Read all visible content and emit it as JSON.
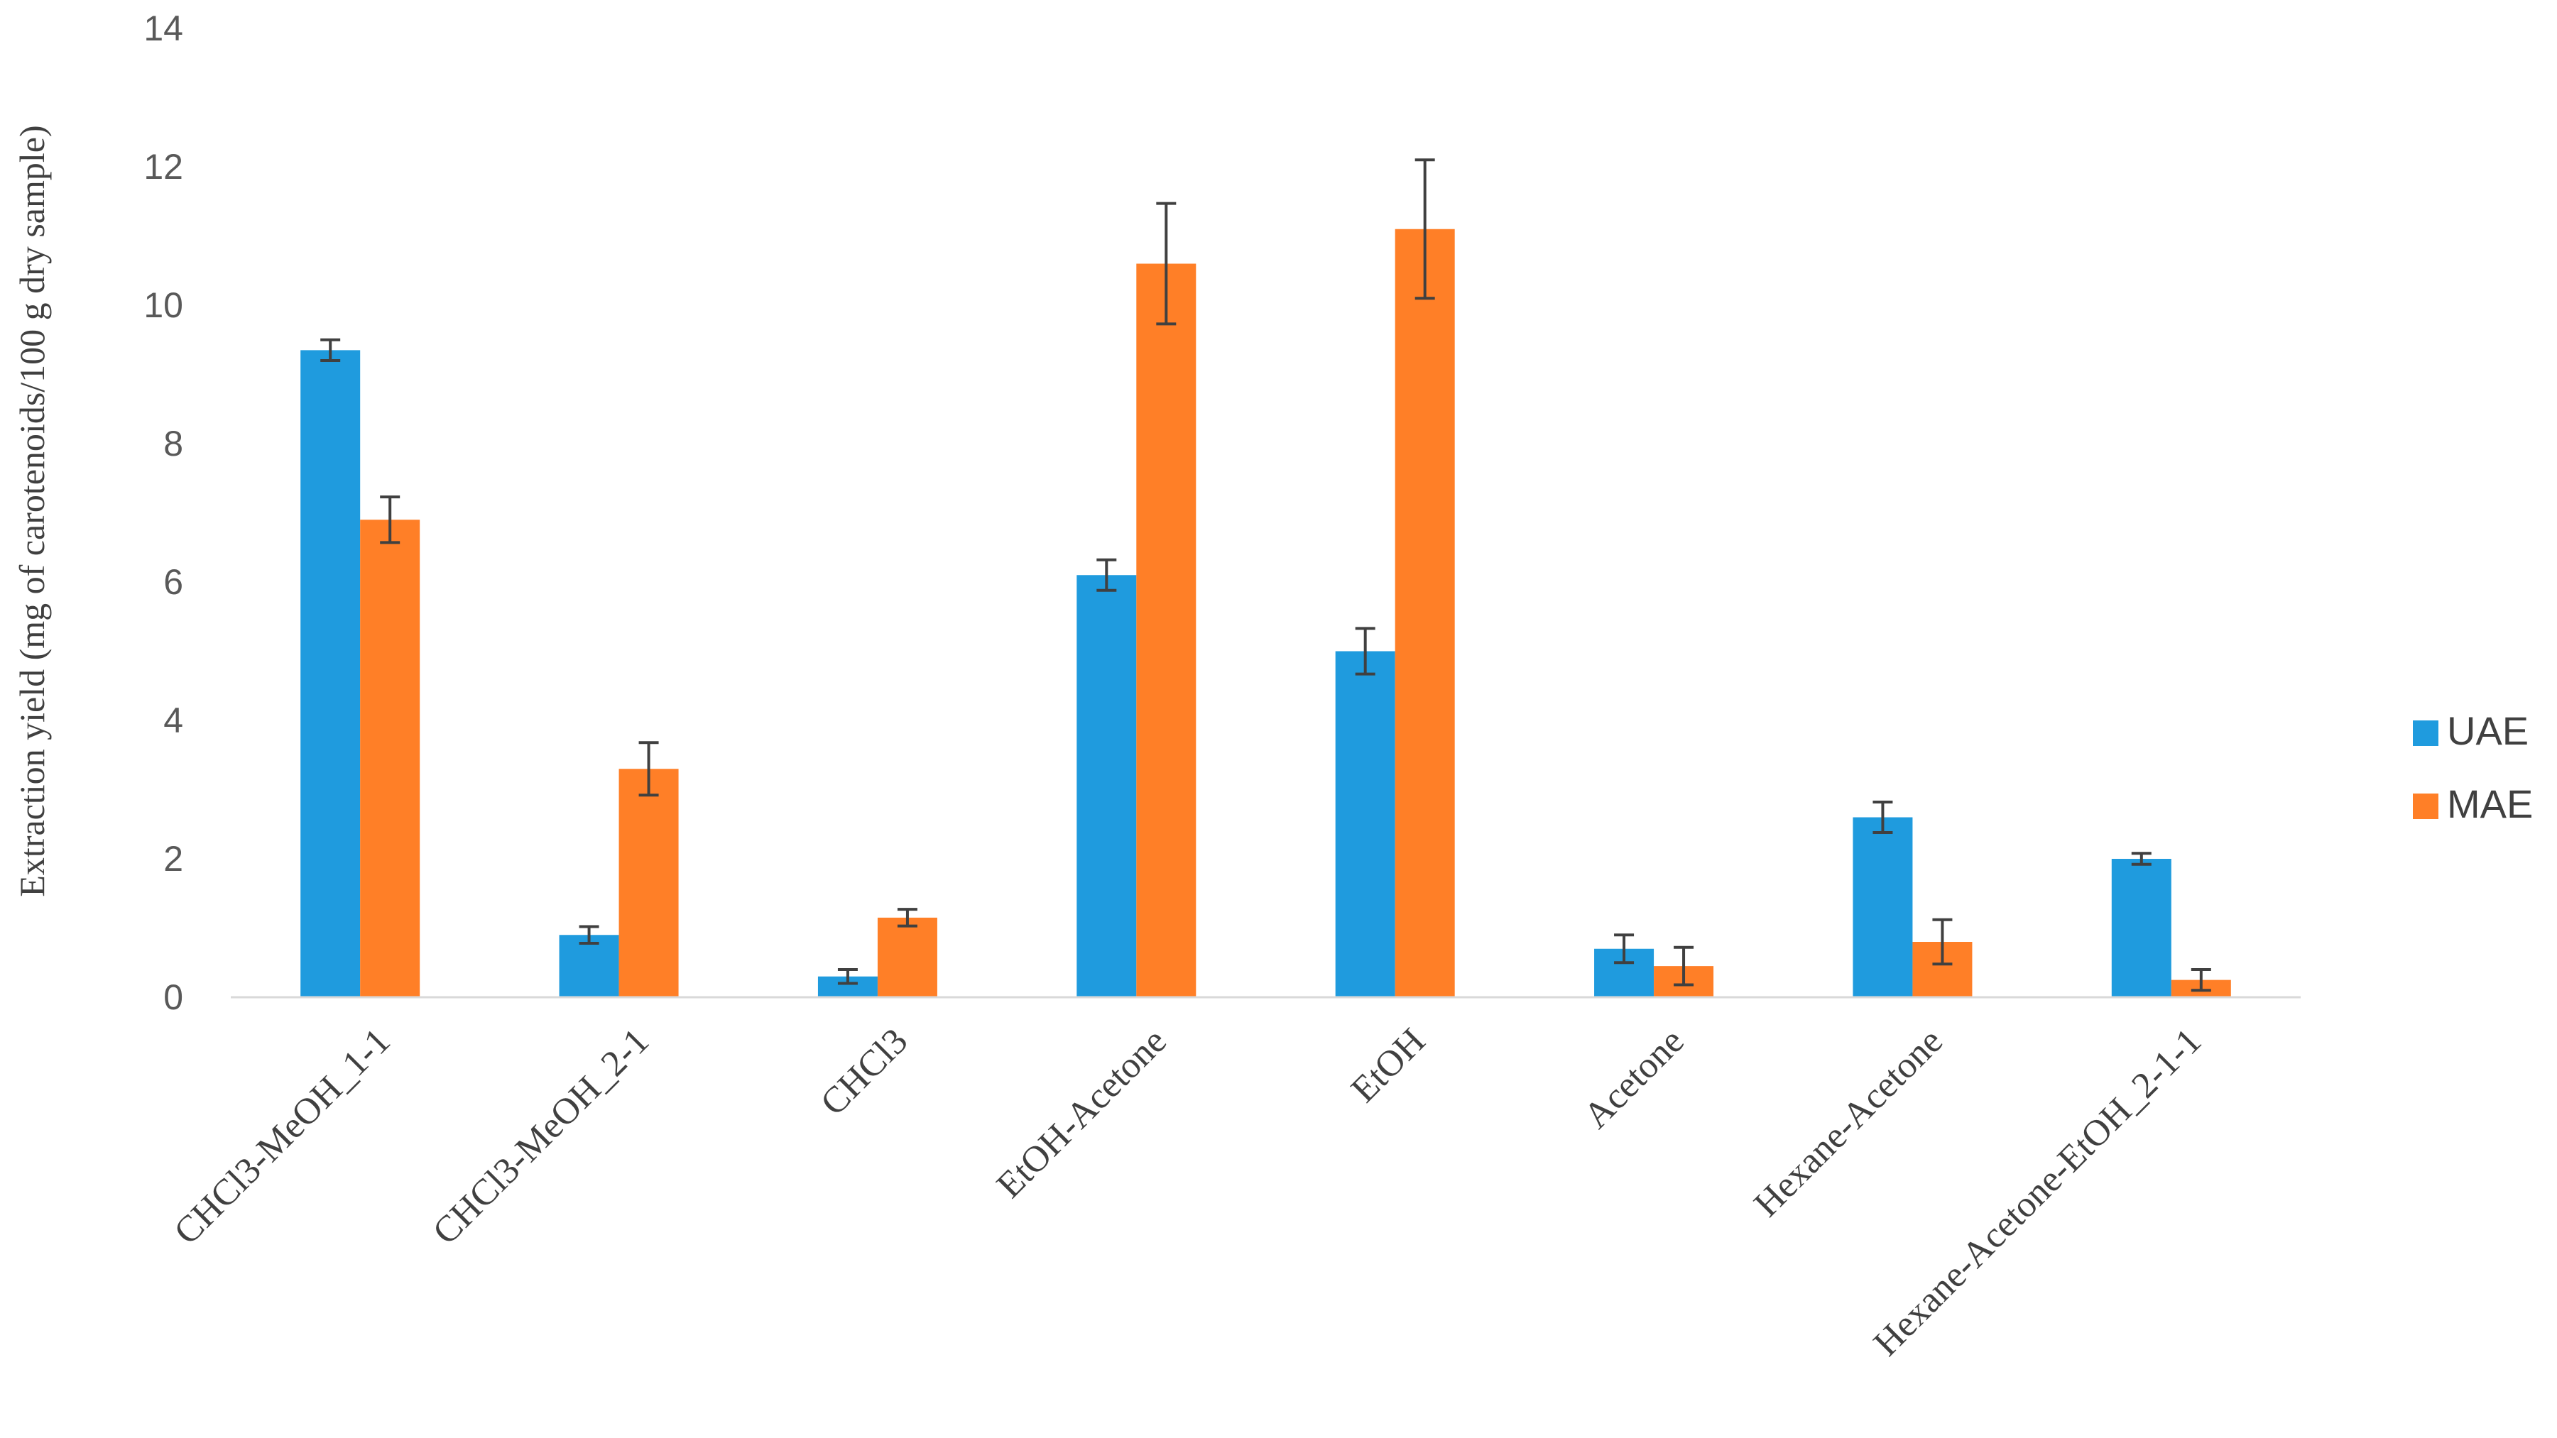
{
  "chart_data": {
    "type": "bar",
    "title": "",
    "xlabel": "",
    "ylabel": "Extraction yield (mg of carotenoids/100 g dry sample)",
    "ylim": [
      0,
      14
    ],
    "yticks": [
      0,
      2,
      4,
      6,
      8,
      10,
      12,
      14
    ],
    "grid": false,
    "legend_position": "right",
    "categories": [
      "CHCl3-MeOH_1-1",
      "CHCl3-MeOH_2-1",
      "CHCl3",
      "EtOH-Acetone",
      "EtOH",
      "Acetone",
      "Hexane-Acetone",
      "Hexane-Acetone-EtOH_2-1-1"
    ],
    "series": [
      {
        "name": "UAE",
        "color": "#1F9BDE",
        "values": [
          9.35,
          0.9,
          0.3,
          6.1,
          5.0,
          0.7,
          2.6,
          2.0
        ],
        "errors": [
          0.15,
          0.12,
          0.1,
          0.22,
          0.33,
          0.2,
          0.22,
          0.08
        ]
      },
      {
        "name": "MAE",
        "color": "#FF7F27",
        "values": [
          6.9,
          3.3,
          1.15,
          10.6,
          11.1,
          0.45,
          0.8,
          0.25
        ],
        "errors": [
          0.33,
          0.38,
          0.12,
          0.87,
          1.0,
          0.27,
          0.32,
          0.15
        ]
      }
    ]
  }
}
